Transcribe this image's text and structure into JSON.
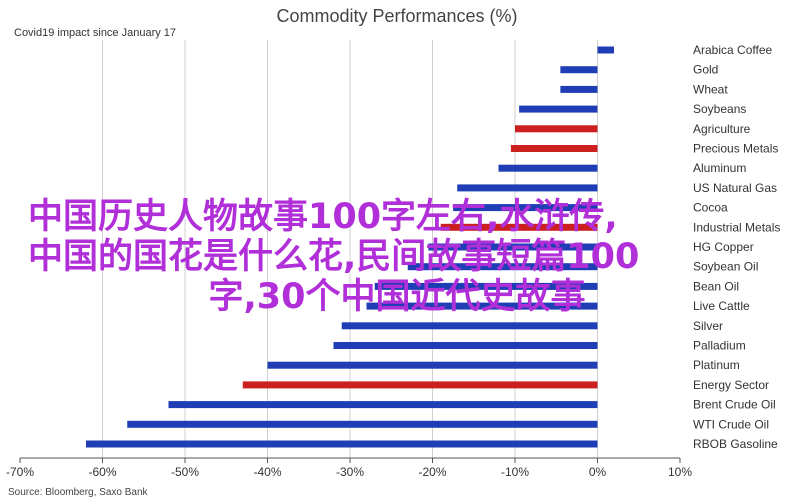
{
  "chart_data": {
    "type": "bar",
    "orientation": "horizontal",
    "title": "Commodity Performances (%)",
    "subtitle": "Covid19 impact since January 17",
    "source": "Source: Bloomberg, Saxo Bank",
    "xlim": [
      -70,
      10
    ],
    "x_ticks": [
      "-70%",
      "-60%",
      "-50%",
      "-40%",
      "-30%",
      "-20%",
      "-10%",
      "0%",
      "10%"
    ],
    "grid": true,
    "categories": [
      "Arabica Coffee",
      "Gold",
      "Wheat",
      "Soybeans",
      "Agriculture",
      "Precious Metals",
      "Aluminum",
      "US Natural Gas",
      "Cocoa",
      "Industrial Metals",
      "HG Copper",
      "Soybean Oil",
      "Bean Oil",
      "Live Cattle",
      "Silver",
      "Palladium",
      "Platinum",
      "Energy Sector",
      "Brent Crude Oil",
      "WTI Crude Oil",
      "RBOB Gasoline"
    ],
    "values": [
      2.0,
      -4.5,
      -4.5,
      -9.5,
      -10.0,
      -10.5,
      -12.0,
      -17.0,
      -17.5,
      -19.0,
      -20.5,
      -23.0,
      -27.0,
      -28.0,
      -31.0,
      -32.0,
      -40.0,
      -43.0,
      -52.0,
      -57.0,
      -62.0
    ],
    "bar_colors": [
      "#1f3eb5",
      "#1f3eb5",
      "#1f3eb5",
      "#1f3eb5",
      "#cc1f1f",
      "#cc1f1f",
      "#1f3eb5",
      "#1f3eb5",
      "#1f3eb5",
      "#cc1f1f",
      "#1f3eb5",
      "#1f3eb5",
      "#1f3eb5",
      "#1f3eb5",
      "#1f3eb5",
      "#1f3eb5",
      "#1f3eb5",
      "#cc1f1f",
      "#1f3eb5",
      "#1f3eb5",
      "#1f3eb5"
    ]
  },
  "overlay": {
    "color": "#b12fd8",
    "lines": [
      "中国历史人物故事100字左右,水浒传,",
      "中国的国花是什么花,民间故事短篇100",
      "字,30个中国近代史故事"
    ]
  }
}
